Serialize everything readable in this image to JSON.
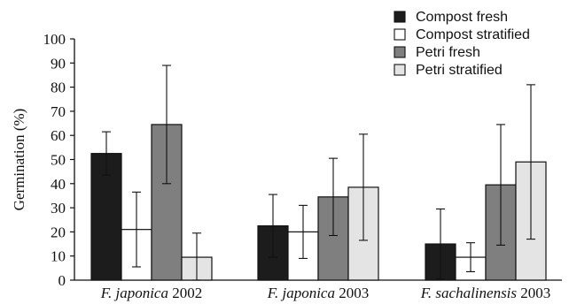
{
  "chart_data": {
    "type": "bar",
    "ylabel": "Germination (%)",
    "xlabel": "",
    "ylim": [
      0,
      100
    ],
    "yticks": [
      "0",
      "10",
      "20",
      "30",
      "40",
      "50",
      "60",
      "70",
      "80",
      "90",
      "100"
    ],
    "categories": [
      {
        "italic": "F. japonica",
        "rest": "2002"
      },
      {
        "italic": "F. japonica",
        "rest": "2003"
      },
      {
        "italic": "F. sachalinensis",
        "rest": "2003"
      }
    ],
    "series": [
      {
        "name": "Compost fresh",
        "color": "#1c1c1c",
        "values": [
          52.5,
          22.5,
          15
        ],
        "err_low": [
          9,
          13,
          14.5
        ],
        "err_high": [
          9,
          13,
          14.5
        ]
      },
      {
        "name": "Compost stratified",
        "color": "#ffffff",
        "values": [
          21,
          20,
          9.5
        ],
        "err_low": [
          15.5,
          11,
          6
        ],
        "err_high": [
          15.5,
          11,
          6
        ]
      },
      {
        "name": "Petri fresh",
        "color": "#7f7f7f",
        "values": [
          64.5,
          34.5,
          39.5
        ],
        "err_low": [
          24.5,
          16,
          25
        ],
        "err_high": [
          24.5,
          16,
          25
        ]
      },
      {
        "name": "Petri stratified",
        "color": "#e4e4e4",
        "values": [
          9.5,
          38.5,
          49
        ],
        "err_low": [
          10,
          22,
          32
        ],
        "err_high": [
          10,
          22,
          32
        ]
      }
    ],
    "legend_position": "top-right",
    "grid": false
  }
}
